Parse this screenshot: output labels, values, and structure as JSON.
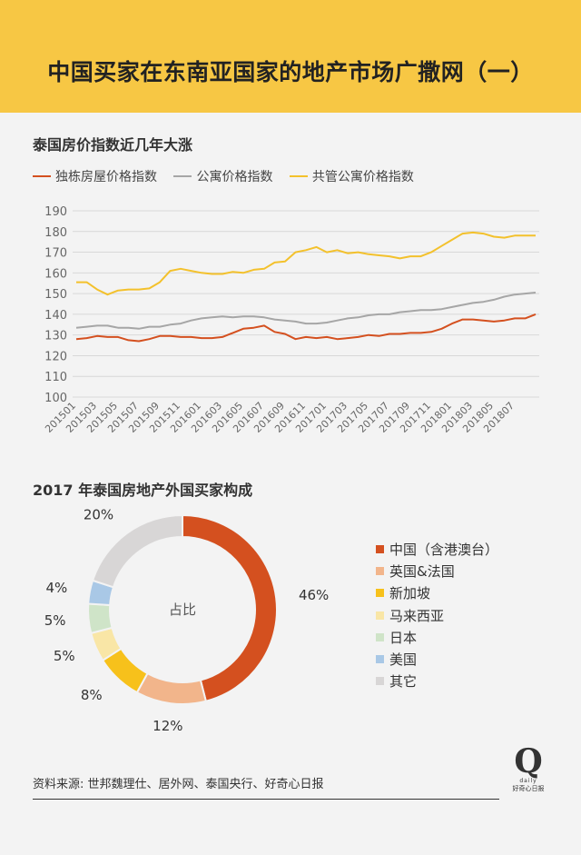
{
  "header": {
    "title": "中国买家在东南亚国家的地产市场广撒网（一）"
  },
  "chart_data": [
    {
      "type": "line",
      "title": "泰国房价指数近几年大涨",
      "ylim": [
        100,
        190
      ],
      "yticks": [
        100,
        110,
        120,
        130,
        140,
        150,
        160,
        170,
        180,
        190
      ],
      "x_tick_labels": [
        "201501",
        "201503",
        "201505",
        "201507",
        "201509",
        "201511",
        "201601",
        "201603",
        "201605",
        "201607",
        "201609",
        "201611",
        "201701",
        "201703",
        "201705",
        "201707",
        "201709",
        "201711",
        "201801",
        "201803",
        "201805",
        "201807"
      ],
      "x": [
        "201501",
        "201502",
        "201503",
        "201504",
        "201505",
        "201506",
        "201507",
        "201508",
        "201509",
        "201510",
        "201511",
        "201512",
        "201601",
        "201602",
        "201603",
        "201604",
        "201605",
        "201606",
        "201607",
        "201608",
        "201609",
        "201610",
        "201611",
        "201612",
        "201701",
        "201702",
        "201703",
        "201704",
        "201705",
        "201706",
        "201707",
        "201708",
        "201709",
        "201710",
        "201711",
        "201712",
        "201801",
        "201802",
        "201803",
        "201804",
        "201805",
        "201806",
        "201807",
        "201808",
        "201809"
      ],
      "series": [
        {
          "name": "独栋房屋价格指数",
          "color": "#d4501f",
          "values": [
            128,
            128.5,
            129.5,
            129,
            129,
            127.5,
            127,
            128,
            129.5,
            129.5,
            129,
            129,
            128.5,
            128.5,
            129,
            131,
            133,
            133.5,
            134.5,
            131.5,
            130.5,
            128,
            129,
            128.5,
            129,
            128,
            128.5,
            129,
            130,
            129.5,
            130.5,
            130.5,
            131,
            131,
            131.5,
            133,
            135.5,
            137.5,
            137.5,
            137,
            136.5,
            137,
            138,
            138,
            140
          ]
        },
        {
          "name": "公寓价格指数",
          "color": "#a6a6a6",
          "values": [
            133.5,
            134,
            134.5,
            134.5,
            133.5,
            133.5,
            133,
            134,
            134,
            135,
            135.5,
            137,
            138,
            138.5,
            139,
            138.5,
            139,
            139,
            138.5,
            137.5,
            137,
            136.5,
            135.5,
            135.5,
            136,
            137,
            138,
            138.5,
            139.5,
            140,
            140,
            141,
            141.5,
            142,
            142,
            142.5,
            143.5,
            144.5,
            145.5,
            146,
            147,
            148.5,
            149.5,
            150,
            150.5
          ]
        },
        {
          "name": "共管公寓价格指数",
          "color": "#f3c12c",
          "values": [
            155.5,
            155.5,
            152,
            149.5,
            151.5,
            152,
            152,
            152.5,
            155.5,
            161,
            162,
            161,
            160,
            159.5,
            159.5,
            160.5,
            160,
            161.5,
            162,
            165,
            165.5,
            170,
            171,
            172.5,
            170,
            171,
            169.5,
            170,
            169,
            168.5,
            168,
            167,
            168,
            168,
            170,
            173,
            176,
            179,
            179.5,
            179,
            177.5,
            177,
            178,
            178,
            178
          ]
        }
      ]
    },
    {
      "type": "pie",
      "title": "2017 年泰国房地产外国买家构成",
      "center_label": "占比",
      "slices": [
        {
          "label": "中国（含港澳台）",
          "value": 46,
          "pct_label": "46%",
          "color": "#d4501f"
        },
        {
          "label": "英国&法国",
          "value": 12,
          "pct_label": "12%",
          "color": "#f2b58b"
        },
        {
          "label": "新加坡",
          "value": 8,
          "pct_label": "8%",
          "color": "#f7c11b"
        },
        {
          "label": "马来西亚",
          "value": 5,
          "pct_label": "5%",
          "color": "#f9e6a6"
        },
        {
          "label": "日本",
          "value": 5,
          "pct_label": "5%",
          "color": "#cfe4c8"
        },
        {
          "label": "美国",
          "value": 4,
          "pct_label": "4%",
          "color": "#a9c8e6"
        },
        {
          "label": "其它",
          "value": 20,
          "pct_label": "20%",
          "color": "#d8d6d6"
        }
      ]
    }
  ],
  "footer": {
    "source": "资料来源: 世邦魏理仕、居外网、泰国央行、好奇心日报",
    "logo_letter": "Q",
    "logo_sub": "daily",
    "logo_cn": "好奇心日报"
  }
}
